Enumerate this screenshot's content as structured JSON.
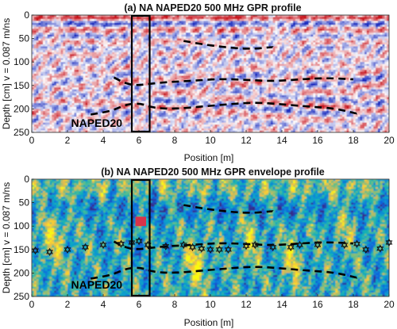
{
  "chart_data": [
    {
      "type": "heatmap",
      "panel": "a",
      "title": "(a)  NA NAPED20 500 MHz GPR profile",
      "xlabel": "Position [m]",
      "ylabel": "Depth [cm] v = 0.087 m/ns",
      "xlim": [
        0,
        20
      ],
      "ylim": [
        250,
        0
      ],
      "x_ticks": [
        0,
        2,
        4,
        6,
        8,
        10,
        12,
        14,
        16,
        18,
        20
      ],
      "y_ticks": [
        0,
        50,
        100,
        150,
        200,
        250
      ],
      "colormap": "red-white-blue",
      "highlight_box": {
        "x": [
          5.6,
          6.6
        ],
        "y": [
          0,
          250
        ]
      },
      "interpreted_layers": [
        {
          "x": [
            8.5,
            9.5,
            10.5,
            11.5,
            12.5,
            13.5
          ],
          "y": [
            55,
            62,
            67,
            71,
            72,
            68
          ]
        },
        {
          "x": [
            4.6,
            5.2,
            5.8,
            6.5,
            7.5,
            9,
            10.5,
            12,
            13.5,
            15,
            16.5,
            18
          ],
          "y": [
            133,
            145,
            150,
            147,
            143,
            140,
            136,
            138,
            141,
            137,
            134,
            137
          ]
        },
        {
          "x": [
            3.3,
            4.5,
            5.3,
            6.1,
            6.8,
            8,
            9.5,
            11,
            12.5,
            14,
            15.5,
            17,
            18.2
          ],
          "y": [
            212,
            204,
            190,
            188,
            198,
            200,
            195,
            190,
            186,
            190,
            195,
            199,
            210
          ]
        }
      ],
      "annotations": [
        {
          "text": "NAPED20",
          "x": 2.2,
          "y": 230
        }
      ]
    },
    {
      "type": "heatmap",
      "panel": "b",
      "title": "(b)  NA NAPED20 500 MHz GPR envelope profile",
      "xlabel": "Position [m]",
      "ylabel": "Depth [cm] v = 0.087 m/ns",
      "xlim": [
        0,
        20
      ],
      "ylim": [
        250,
        0
      ],
      "x_ticks": [
        0,
        2,
        4,
        6,
        8,
        10,
        12,
        14,
        16,
        18,
        20
      ],
      "y_ticks": [
        0,
        50,
        100,
        150,
        200,
        250
      ],
      "colormap": "parula",
      "highlight_box": {
        "x": [
          5.6,
          6.6
        ],
        "y": [
          0,
          250
        ]
      },
      "red_patch": {
        "x": [
          5.8,
          6.4
        ],
        "y": [
          80,
          100
        ]
      },
      "interpreted_layers": [
        {
          "x": [
            8.5,
            9.5,
            10.5,
            11.5,
            12.5,
            13.5
          ],
          "y": [
            55,
            62,
            67,
            71,
            72,
            68
          ]
        },
        {
          "x": [
            4.6,
            5.2,
            5.8,
            6.5,
            7.5,
            9,
            10.5,
            12,
            13.5,
            15,
            16.5,
            18
          ],
          "y": [
            133,
            145,
            150,
            147,
            143,
            140,
            136,
            138,
            141,
            137,
            134,
            137
          ]
        },
        {
          "x": [
            3.3,
            4.5,
            5.3,
            6.1,
            6.8,
            8,
            9.5,
            11,
            12.5,
            14,
            15.5,
            17,
            18.2
          ],
          "y": [
            212,
            204,
            190,
            188,
            198,
            200,
            195,
            190,
            186,
            190,
            195,
            199,
            210
          ]
        }
      ],
      "markers": {
        "symbol": "hexagram",
        "x": [
          0.2,
          1.0,
          2.0,
          3.0,
          4.0,
          5.0,
          5.6,
          6.0,
          6.5,
          7.5,
          8.5,
          9.0,
          9.5,
          10.0,
          10.5,
          11.0,
          12.0,
          12.5,
          13.5,
          14.5,
          15.0,
          16.0,
          17.5,
          18.2,
          18.7,
          19.5,
          20.0
        ],
        "y": [
          152,
          155,
          150,
          145,
          140,
          138,
          135,
          132,
          140,
          143,
          140,
          145,
          148,
          150,
          150,
          150,
          142,
          140,
          145,
          145,
          140,
          140,
          140,
          138,
          150,
          148,
          135
        ]
      },
      "annotations": [
        {
          "text": "NAPED20",
          "x": 2.2,
          "y": 225
        }
      ]
    }
  ]
}
